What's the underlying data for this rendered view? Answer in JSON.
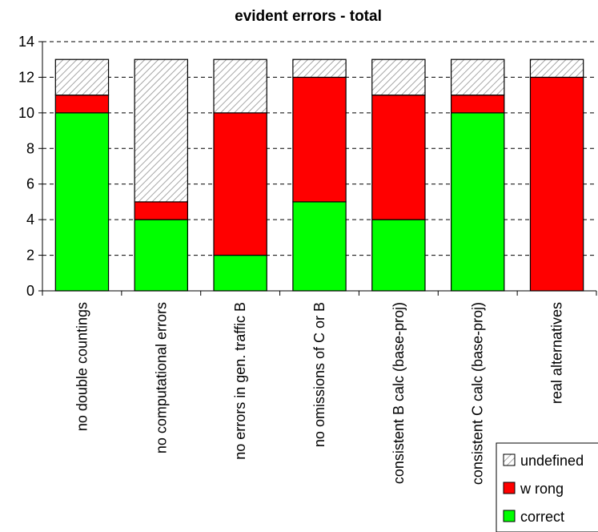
{
  "chart_data": {
    "type": "bar",
    "stacked": true,
    "title": "evident errors - total",
    "xlabel": "",
    "ylabel": "",
    "ylim": [
      0,
      14
    ],
    "yticks": [
      0,
      2,
      4,
      6,
      8,
      10,
      12,
      14
    ],
    "grid": true,
    "legend_position": "bottom-right",
    "categories": [
      "no double countings",
      "no computational errors",
      "no errors in gen. traffic B",
      "no omissions of C or B",
      "consistent B calc (base-proj)",
      "consistent C calc (base-proj)",
      "real alternatives"
    ],
    "series": [
      {
        "name": "correct",
        "color": "#00ff00",
        "values": [
          10,
          4,
          2,
          5,
          4,
          10,
          0
        ]
      },
      {
        "name": "w rong",
        "color": "#ff0000",
        "values": [
          1,
          1,
          8,
          7,
          7,
          1,
          12
        ]
      },
      {
        "name": "undefined",
        "color": "#e6e6e6",
        "pattern": "hatch",
        "values": [
          2,
          8,
          3,
          1,
          2,
          2,
          1
        ]
      }
    ],
    "legend_order": [
      "undefined",
      "w rong",
      "correct"
    ]
  }
}
